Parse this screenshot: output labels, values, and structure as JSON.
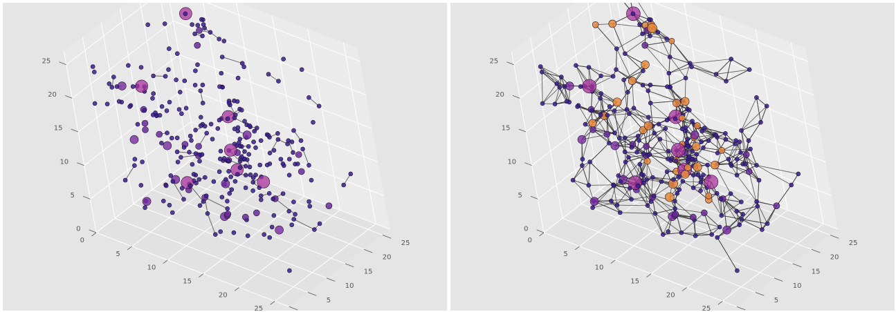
{
  "chart_data": [
    {
      "type": "scatter",
      "subtype": "3d-scatter-network",
      "xlim": [
        0,
        27
      ],
      "ylim": [
        0,
        27
      ],
      "zlim": [
        0,
        27
      ],
      "x_ticks": [
        "0",
        "5",
        "10",
        "15",
        "20",
        "25"
      ],
      "y_ticks": [
        "0",
        "5",
        "10",
        "15",
        "20",
        "25"
      ],
      "z_ticks": [
        "0",
        "5",
        "10",
        "15",
        "20",
        "25"
      ],
      "grid": true,
      "node_color": "#3b1f8f",
      "hub_color": "#a8329c",
      "edge_color": "#333333",
      "background": "#e5e5e5",
      "edge_density": "sparse",
      "hubs": [
        {
          "x": 4,
          "y": 24,
          "z": 24
        },
        {
          "x": 14,
          "y": 14,
          "z": 17
        },
        {
          "x": 12,
          "y": 17,
          "z": 7
        },
        {
          "x": 9,
          "y": 21,
          "z": 7
        },
        {
          "x": 15,
          "y": 18,
          "z": 6
        },
        {
          "x": 5,
          "y": 9,
          "z": 20
        },
        {
          "x": 8,
          "y": 11,
          "z": 6
        }
      ]
    },
    {
      "type": "scatter",
      "subtype": "3d-scatter-network",
      "xlim": [
        0,
        27
      ],
      "ylim": [
        0,
        27
      ],
      "zlim": [
        0,
        27
      ],
      "x_ticks": [
        "0",
        "5",
        "10",
        "15",
        "20",
        "25"
      ],
      "y_ticks": [
        "0",
        "5",
        "10",
        "15",
        "20",
        "25"
      ],
      "z_ticks": [
        "0",
        "5",
        "10",
        "15",
        "20",
        "25"
      ],
      "grid": true,
      "node_color": "#3b1f8f",
      "hub_color": "#a8329c",
      "hot_color": "#e88a3c",
      "edge_color": "#333333",
      "background": "#e5e5e5",
      "edge_density": "dense",
      "hubs": [
        {
          "x": 4,
          "y": 24,
          "z": 24
        },
        {
          "x": 14,
          "y": 14,
          "z": 17
        },
        {
          "x": 12,
          "y": 17,
          "z": 7
        },
        {
          "x": 9,
          "y": 21,
          "z": 7
        },
        {
          "x": 15,
          "y": 18,
          "z": 6
        },
        {
          "x": 5,
          "y": 9,
          "z": 20
        },
        {
          "x": 8,
          "y": 11,
          "z": 6
        }
      ]
    }
  ]
}
